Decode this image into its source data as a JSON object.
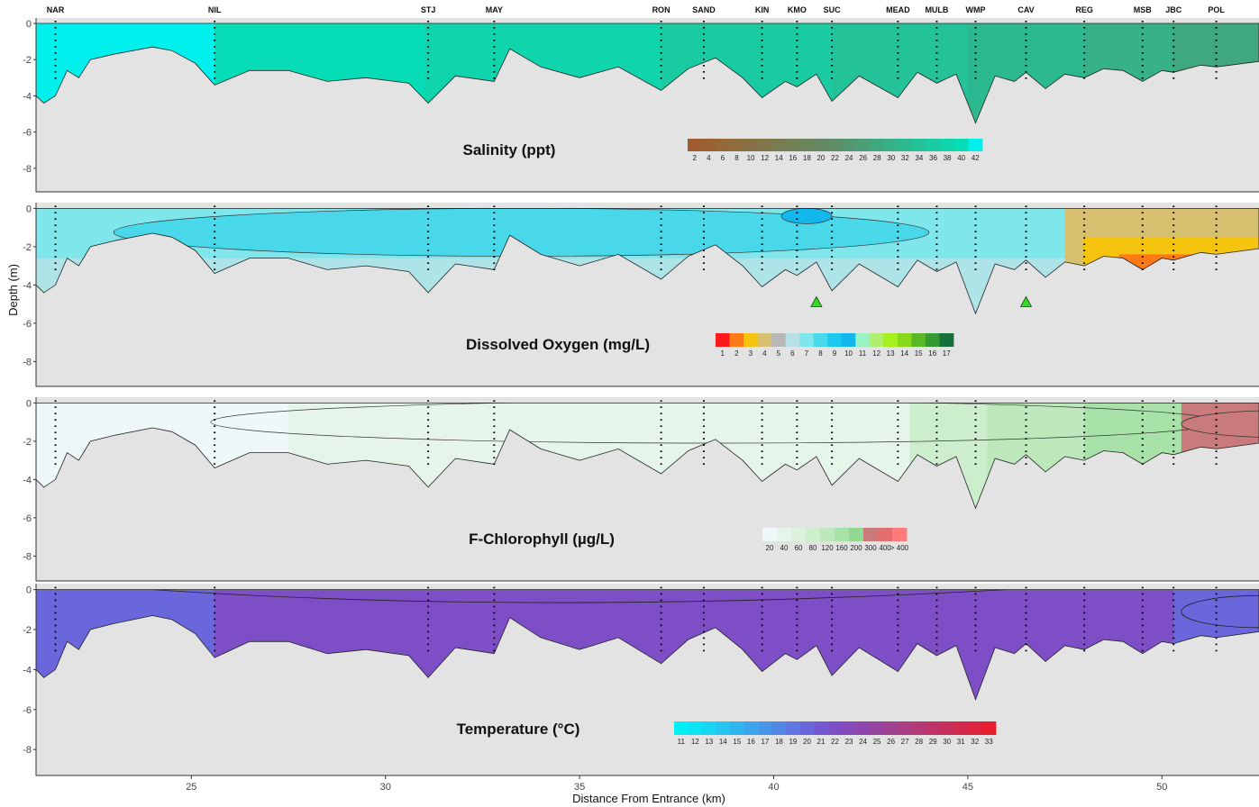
{
  "chart_data": {
    "type": "area",
    "xlabel": "Distance From Entrance (km)",
    "ylabel": "Depth (m)",
    "xlim": [
      21,
      52.5
    ],
    "ylim": [
      -9.3,
      0.3
    ],
    "x_ticks": [
      25,
      30,
      35,
      40,
      45,
      50
    ],
    "y_ticks": [
      0,
      -2,
      -4,
      -6,
      -8
    ],
    "stations": [
      {
        "name": "NAR",
        "km": 21.5
      },
      {
        "name": "NIL",
        "km": 25.6
      },
      {
        "name": "STJ",
        "km": 31.1
      },
      {
        "name": "MAY",
        "km": 32.8
      },
      {
        "name": "RON",
        "km": 37.1
      },
      {
        "name": "SAND",
        "km": 38.2
      },
      {
        "name": "KIN",
        "km": 39.7
      },
      {
        "name": "KMO",
        "km": 40.6
      },
      {
        "name": "SUC",
        "km": 41.5
      },
      {
        "name": "MEAD",
        "km": 43.2
      },
      {
        "name": "MULB",
        "km": 44.2
      },
      {
        "name": "WMP",
        "km": 45.2
      },
      {
        "name": "CAV",
        "km": 46.5
      },
      {
        "name": "REG",
        "km": 48.0
      },
      {
        "name": "MSB",
        "km": 49.5
      },
      {
        "name": "JBC",
        "km": 50.3
      },
      {
        "name": "POL",
        "km": 51.4
      }
    ],
    "bottom_profile": {
      "km": [
        21.0,
        21.2,
        21.5,
        21.8,
        22.1,
        22.4,
        23.0,
        24.0,
        24.5,
        25.1,
        25.6,
        26.5,
        27.5,
        28.5,
        29.5,
        30.6,
        31.1,
        31.8,
        32.8,
        33.2,
        34.0,
        35.0,
        36.0,
        37.1,
        37.8,
        38.5,
        39.2,
        39.7,
        40.3,
        40.6,
        41.1,
        41.5,
        42.2,
        43.2,
        43.7,
        44.2,
        44.7,
        45.2,
        45.7,
        46.2,
        46.5,
        47.0,
        47.5,
        48.0,
        48.5,
        49.0,
        49.5,
        50.0,
        50.3,
        51.0,
        51.4,
        52.5
      ],
      "depth_m": [
        -4.0,
        -4.4,
        -4.0,
        -2.6,
        -3.0,
        -2.0,
        -1.7,
        -1.3,
        -1.5,
        -2.2,
        -3.4,
        -2.6,
        -2.6,
        -3.2,
        -3.0,
        -3.3,
        -4.4,
        -2.9,
        -3.2,
        -1.4,
        -2.4,
        -3.0,
        -2.4,
        -3.7,
        -2.5,
        -1.9,
        -3.0,
        -4.1,
        -3.2,
        -3.5,
        -2.8,
        -4.3,
        -2.9,
        -4.1,
        -2.7,
        -3.3,
        -2.8,
        -5.5,
        -2.9,
        -3.2,
        -2.7,
        -3.6,
        -2.8,
        -3.0,
        -2.5,
        -2.6,
        -3.2,
        -2.6,
        -2.7,
        -2.3,
        -2.4,
        -2.1
      ]
    },
    "panels": [
      {
        "title": "Salinity (ppt)",
        "variable": "salinity",
        "legend_labels": [
          "2",
          "4",
          "6",
          "8",
          "10",
          "12",
          "14",
          "16",
          "18",
          "20",
          "22",
          "24",
          "26",
          "28",
          "30",
          "32",
          "34",
          "36",
          "38",
          "40",
          "42"
        ],
        "legend_colors": [
          "#9d5d2f",
          "#9a6232",
          "#946838",
          "#8e6d3e",
          "#877144",
          "#80764a",
          "#797b50",
          "#728056",
          "#6b845c",
          "#648962",
          "#5d8e68",
          "#54966f",
          "#4a9f77",
          "#40a87f",
          "#37b187",
          "#2db98f",
          "#24c298",
          "#1acba1",
          "#10d4ab",
          "#06ddb6",
          "#00f0ee"
        ],
        "zones": [
          {
            "km": [
              21.0,
              25.6
            ],
            "value": 42
          },
          {
            "km": [
              25.6,
              31.0
            ],
            "value": 40
          },
          {
            "km": [
              31.0,
              37.1
            ],
            "value": 38
          },
          {
            "km": [
              37.1,
              41.5
            ],
            "value": 36
          },
          {
            "km": [
              41.5,
              45.0
            ],
            "value": 34
          },
          {
            "km": [
              45.0,
              48.0
            ],
            "value": 32
          },
          {
            "km": [
              48.0,
              50.3
            ],
            "value": 30
          },
          {
            "km": [
              50.3,
              52.5
            ],
            "value": 28
          }
        ]
      },
      {
        "title": "Dissolved Oxygen (mg/L)",
        "variable": "dissolved_oxygen",
        "legend_labels": [
          "1",
          "2",
          "3",
          "4",
          "5",
          "6",
          "7",
          "8",
          "9",
          "10",
          "11",
          "12",
          "13",
          "14",
          "15",
          "16",
          "17"
        ],
        "legend_colors": [
          "#ff1a1a",
          "#ff7a16",
          "#f5c40e",
          "#d6bf6e",
          "#b8b8b8",
          "#b6e2e6",
          "#7fe6ec",
          "#48d8ea",
          "#1cc8ee",
          "#12b7ee",
          "#98f2c2",
          "#b2ee6e",
          "#a6f020",
          "#86d818",
          "#58b828",
          "#349a32",
          "#16703a"
        ],
        "background_value": 7,
        "bottom_layer_value": 6,
        "contours": [
          {
            "value": 9,
            "km": [
              28.0,
              31.0
            ],
            "depth_m": [
              -0.3,
              -1.3
            ]
          },
          {
            "value": 8,
            "km": [
              23.0,
              44.0
            ],
            "depth_m": [
              0,
              -2.5
            ]
          },
          {
            "value": 10,
            "km": [
              40.2,
              41.5
            ],
            "depth_m": [
              0,
              -0.8
            ]
          }
        ],
        "hypoxic_zone": {
          "km": [
            47.5,
            52.5
          ],
          "min_value": 1
        },
        "markers": [
          {
            "km": 41.1,
            "depth_m": -4.9
          },
          {
            "km": 46.5,
            "depth_m": -4.9
          }
        ]
      },
      {
        "title": "F-Chlorophyll (µg/L)",
        "variable": "chlorophyll",
        "legend_labels": [
          "20",
          "40",
          "60",
          "80",
          "120",
          "160",
          "200",
          "300",
          "400",
          "> 400"
        ],
        "legend_colors": [
          "#eef8f8",
          "#e6f5ea",
          "#dcf2dd",
          "#cdeecd",
          "#bce8bc",
          "#a8e2a8",
          "#92d892",
          "#c97a7a",
          "#e26e6e",
          "#ff7a7a"
        ],
        "zones": [
          {
            "km": [
              21.0,
              27.5
            ],
            "value": 20
          },
          {
            "km": [
              27.5,
              43.5
            ],
            "value": 40
          },
          {
            "km": [
              43.5,
              45.5
            ],
            "value": 80
          },
          {
            "km": [
              45.5,
              48.0
            ],
            "value": 120
          },
          {
            "km": [
              48.0,
              50.5
            ],
            "value": 160
          },
          {
            "km": [
              50.5,
              52.5
            ],
            "value": 300
          }
        ]
      },
      {
        "title": "Temperature (°C)",
        "variable": "temperature",
        "legend_labels": [
          "11",
          "12",
          "13",
          "14",
          "15",
          "16",
          "17",
          "18",
          "19",
          "20",
          "21",
          "22",
          "23",
          "24",
          "25",
          "26",
          "27",
          "28",
          "29",
          "30",
          "31",
          "32",
          "33"
        ],
        "legend_colors": [
          "#00f0f4",
          "#0ce4f4",
          "#18d6f2",
          "#24c6f0",
          "#30b6ee",
          "#3ca6ec",
          "#4896ea",
          "#5486e6",
          "#6076e2",
          "#6a66dc",
          "#7458d2",
          "#7e4ec6",
          "#864aba",
          "#8e46ae",
          "#9644a0",
          "#a04292",
          "#aa3e84",
          "#b43a76",
          "#be3468",
          "#c82e5a",
          "#d22a4c",
          "#dc243e",
          "#e61e30"
        ],
        "zones": [
          {
            "km": [
              21.0,
              25.6
            ],
            "value": 20
          },
          {
            "km": [
              25.6,
              50.3
            ],
            "value": 22
          },
          {
            "km": [
              50.3,
              52.5
            ],
            "value": 20
          }
        ]
      }
    ]
  }
}
